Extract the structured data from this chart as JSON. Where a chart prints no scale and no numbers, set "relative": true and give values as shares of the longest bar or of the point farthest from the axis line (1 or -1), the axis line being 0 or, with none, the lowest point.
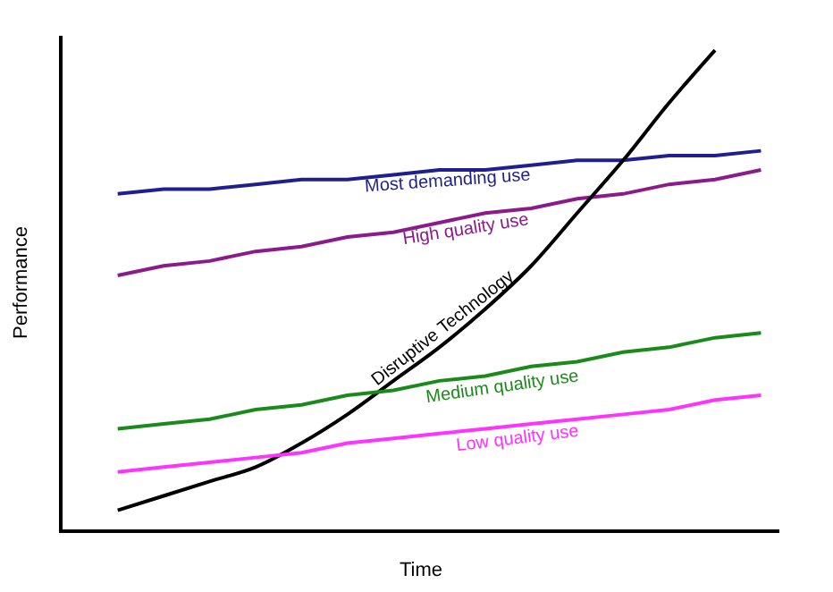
{
  "chart_data": {
    "type": "line",
    "relative": true,
    "xlabel": "Time",
    "ylabel": "Performance",
    "legend": false,
    "marker": "none",
    "line_style": "solid",
    "categories": [
      null,
      null,
      null,
      null,
      null,
      null,
      null,
      null,
      null,
      null,
      null,
      null,
      null,
      null,
      null
    ],
    "series": [
      {
        "name": "Most demanding use",
        "color": "#1f1f8f",
        "values": [
          0.7,
          0.71,
          0.71,
          0.72,
          0.73,
          0.73,
          0.74,
          0.75,
          0.75,
          0.76,
          0.77,
          0.77,
          0.78,
          0.78,
          0.79
        ]
      },
      {
        "name": "High quality use",
        "color": "#8b1a8b",
        "values": [
          0.53,
          0.55,
          0.56,
          0.58,
          0.59,
          0.61,
          0.62,
          0.64,
          0.66,
          0.67,
          0.69,
          0.7,
          0.72,
          0.73,
          0.75
        ]
      },
      {
        "name": "Disruptive Technology",
        "color": "#000000",
        "values": [
          0.04,
          0.07,
          0.1,
          0.13,
          0.18,
          0.24,
          0.31,
          0.38,
          0.46,
          0.55,
          0.66,
          0.77,
          0.89,
          1.0,
          null
        ]
      },
      {
        "name": "Medium quality use",
        "color": "#1a8a1a",
        "values": [
          0.21,
          0.22,
          0.23,
          0.25,
          0.26,
          0.28,
          0.29,
          0.31,
          0.32,
          0.34,
          0.35,
          0.37,
          0.38,
          0.4,
          0.41
        ]
      },
      {
        "name": "Low quality use",
        "color": "#ff33ff",
        "values": [
          0.12,
          0.13,
          0.14,
          0.15,
          0.16,
          0.18,
          0.19,
          0.2,
          0.21,
          0.22,
          0.23,
          0.24,
          0.25,
          0.27,
          0.28
        ]
      }
    ]
  }
}
